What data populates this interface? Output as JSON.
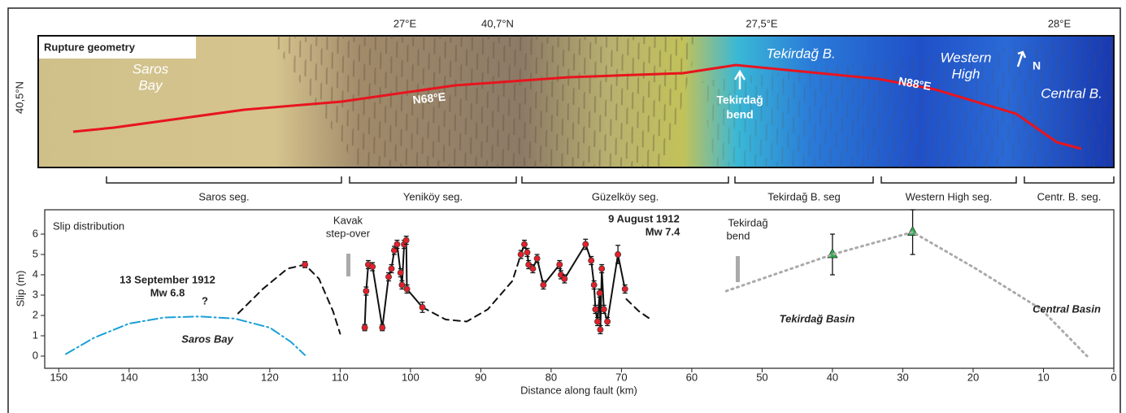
{
  "map": {
    "title": "Rupture geometry",
    "lon_labels": [
      "27°E",
      "40,7°N",
      "27,5°E",
      "28°E"
    ],
    "lat_label": "40,5°N",
    "places": [
      [
        "Saros",
        "Bay"
      ],
      [
        "N68°E"
      ],
      [
        "Tekirdağ B."
      ],
      [
        "Western",
        "High"
      ],
      [
        "N"
      ],
      [
        "Tekirdağ",
        "bend"
      ],
      [
        "N88°E"
      ],
      [
        "Central B."
      ]
    ]
  },
  "segments": [
    "Saros seg.",
    "Yeniköy seg.",
    "Güzelköy seg.",
    "Tekirdağ B. seg",
    "Western High seg.",
    "Centr. B. seg."
  ],
  "chart_data": {
    "type": "line",
    "title": "Slip distribution",
    "xlabel": "Distance along fault (km)",
    "ylabel": "Slip (m)",
    "xlim": [
      152,
      0
    ],
    "ylim": [
      -0.6,
      7.2
    ],
    "xticks": [
      150,
      140,
      130,
      120,
      110,
      100,
      90,
      80,
      70,
      60,
      50,
      40,
      30,
      20,
      10,
      0
    ],
    "yticks": [
      0,
      1,
      2,
      3,
      4,
      5,
      6
    ],
    "annotations": [
      "13 September 1912",
      "Mw 6.8",
      "?",
      "Saros Bay",
      "Kavak",
      "step-over",
      "9 August 1912",
      "Mw 7.4",
      "Tekirdağ",
      "bend",
      "Tekirdağ Basin",
      "Central Basin"
    ],
    "series": [
      {
        "color": "#1aa0d8",
        "style": "dashdot",
        "x": [
          149,
          145,
          140,
          135,
          130,
          125,
          120,
          117,
          115
        ],
        "values": [
          0.1,
          0.9,
          1.6,
          1.9,
          1.95,
          1.85,
          1.4,
          0.7,
          0.05
        ]
      },
      {
        "color": "#111111",
        "style": "dashed",
        "x": [
          124.5,
          121,
          117.5,
          115,
          113,
          111,
          110,
          null,
          98.3,
          95,
          92,
          89,
          85.5,
          84.3,
          null,
          69.3,
          67.5,
          65.8
        ],
        "values": [
          2.1,
          3.3,
          4.3,
          4.5,
          3.8,
          2.2,
          1.1,
          null,
          2.4,
          1.8,
          1.7,
          2.3,
          3.7,
          5.0,
          null,
          2.8,
          2.2,
          1.8
        ]
      },
      {
        "color": "#111111",
        "style": "solid",
        "marker": "circle",
        "marker_color": "#e3202a",
        "x": [
          115,
          null,
          106.5,
          106.3,
          106.0,
          105.4,
          104.0,
          103.1,
          102.7,
          102.3,
          101.9,
          101.4,
          101.2,
          100.9,
          100.6,
          100.5,
          98.3,
          null,
          84.3,
          83.8,
          83.4,
          83.2,
          82.6,
          82.0,
          81.1,
          78.8,
          78.6,
          78.1,
          75.1,
          74.3,
          73.9,
          73.7,
          73.4,
          73.1,
          73.0,
          72.8,
          72.5,
          72.0,
          70.5,
          69.5
        ],
        "values": [
          4.5,
          null,
          1.4,
          3.2,
          4.5,
          4.4,
          1.4,
          3.9,
          4.3,
          5.2,
          5.5,
          4.1,
          3.5,
          5.5,
          5.7,
          3.3,
          2.4,
          null,
          5.0,
          5.5,
          5.1,
          4.5,
          4.3,
          4.8,
          3.5,
          4.5,
          4.0,
          3.8,
          5.5,
          4.7,
          3.5,
          2.3,
          1.7,
          3.1,
          1.3,
          4.3,
          2.3,
          1.7,
          5.0,
          3.3
        ],
        "errors": [
          0.15,
          null,
          0.15,
          0.2,
          0.2,
          0.2,
          0.15,
          0.2,
          0.2,
          0.2,
          0.2,
          0.2,
          0.2,
          0.2,
          0.2,
          0.2,
          0.25,
          null,
          0.2,
          0.2,
          0.2,
          0.2,
          0.2,
          0.2,
          0.2,
          0.2,
          0.2,
          0.2,
          0.25,
          0.2,
          0.2,
          0.2,
          0.2,
          0.2,
          0.2,
          0.2,
          0.2,
          0.2,
          0.45,
          0.2
        ]
      },
      {
        "color": "#111111",
        "style": "none",
        "marker": "triangle",
        "marker_color": "#2bb04a",
        "x": [
          40.0,
          28.6
        ],
        "values": [
          5.0,
          6.1
        ],
        "errors": [
          1.0,
          1.1
        ]
      },
      {
        "color": "#aaaaaa",
        "style": "dotted",
        "x": [
          55.1,
          40.0,
          28.6,
          19.6,
          10.3,
          3.8
        ],
        "values": [
          3.2,
          5.0,
          6.1,
          4.3,
          2.3,
          0.0
        ]
      }
    ]
  }
}
